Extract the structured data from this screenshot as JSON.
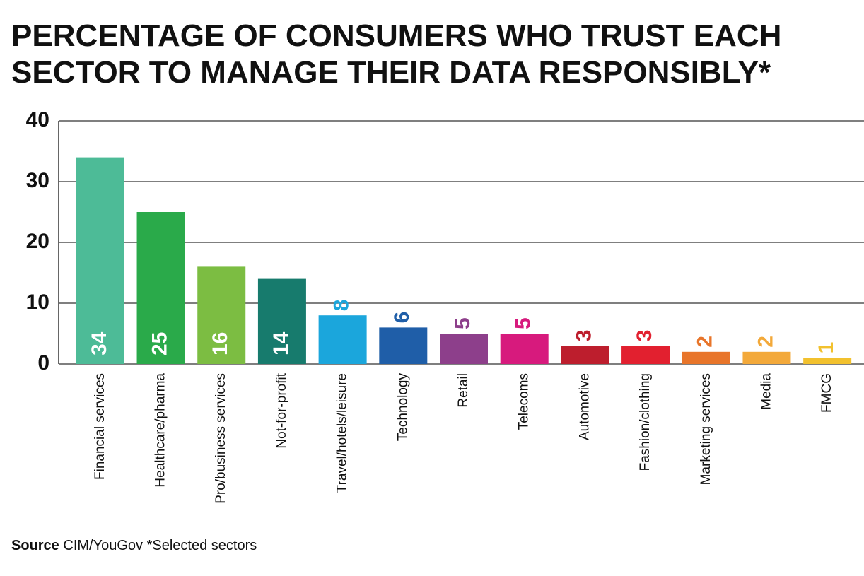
{
  "chart_data": {
    "type": "bar",
    "title": [
      "PERCENTAGE OF CONSUMERS WHO TRUST EACH",
      "SECTOR TO MANAGE THEIR DATA RESPONSIBLY*"
    ],
    "categories": [
      "Financial services",
      "Healthcare/pharma",
      "Pro/business services",
      "Not-for-profit",
      "Travel/hotels/leisure",
      "Technology",
      "Retail",
      "Telecoms",
      "Automotive",
      "Fashion/clothing",
      "Marketing services",
      "Media",
      "FMCG"
    ],
    "values": [
      34,
      25,
      16,
      14,
      8,
      6,
      5,
      5,
      3,
      3,
      2,
      2,
      1
    ],
    "colors": [
      "#4dbb97",
      "#2aaa4a",
      "#7cbd42",
      "#177b6d",
      "#1ba6dc",
      "#1f5ea8",
      "#8d3f8b",
      "#d71a7d",
      "#bd1e2d",
      "#e2202f",
      "#e8752a",
      "#f3a93a",
      "#f2c12e"
    ],
    "ylim": [
      0,
      40
    ],
    "yticks": [
      0,
      10,
      20,
      30,
      40
    ],
    "grid": true,
    "source_label": "Source",
    "source": "CIM/YouGov",
    "note": "*Selected sectors"
  }
}
